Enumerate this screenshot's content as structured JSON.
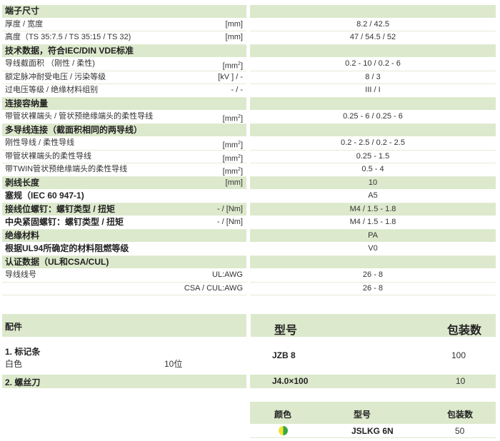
{
  "spec_rows": [
    {
      "label": "端子尺寸",
      "unit": "",
      "value": "",
      "style": "header"
    },
    {
      "label": "厚度 / 宽度",
      "unit": "[mm]",
      "value": "8.2 / 42.5",
      "style": "normal"
    },
    {
      "label": "高度（TS 35:7.5 / TS 35:15 / TS 32)",
      "unit": "[mm]",
      "value": "47 / 54.5 / 52",
      "style": "normal"
    },
    {
      "label": "技术数据，符合IEC/DIN VDE标准",
      "unit": "",
      "value": "",
      "style": "header"
    },
    {
      "label": "导线截面积 （刚性 / 柔性)",
      "unit": "[mm²]",
      "value": "0.2 - 10 / 0.2 - 6",
      "style": "normal"
    },
    {
      "label": "额定脉冲耐受电压 / 污染等级",
      "unit": "[kV ] / -",
      "value": "8 / 3",
      "style": "normal"
    },
    {
      "label": "过电压等级 / 绝缘材料组别",
      "unit": "- / -",
      "value": "III / I",
      "style": "normal"
    },
    {
      "label": "连接容纳量",
      "unit": "",
      "value": "",
      "style": "header"
    },
    {
      "label": "带管状裸端头 / 管状预绝缘端头的柔性导线",
      "unit": "[mm²]",
      "value": "0.25 - 6 / 0.25 - 6",
      "style": "normal"
    },
    {
      "label": "多导线连接（截面积相同的两导线）",
      "unit": "",
      "value": "",
      "style": "header"
    },
    {
      "label": "刚性导线 / 柔性导线",
      "unit": "[mm²]",
      "value": "0.2 - 2.5 / 0.2 - 2.5",
      "style": "normal"
    },
    {
      "label": "带管状裸端头的柔性导线",
      "unit": "[mm²]",
      "value": "0.25 - 1.5",
      "style": "normal"
    },
    {
      "label": "带TWIN管状预绝缘端头的柔性导线",
      "unit": "[mm²]",
      "value": "0.5 - 4",
      "style": "normal"
    },
    {
      "label": "剥线长度",
      "unit": "[mm]",
      "value": "10",
      "style": "header"
    },
    {
      "label": "塞规（IEC 60 947-1)",
      "unit": "",
      "value": "A5",
      "style": "bold"
    },
    {
      "label": "接线位螺钉：螺钉类型 / 扭矩",
      "unit": "- / [Nm]",
      "value": "M4 / 1.5 - 1.8",
      "style": "header"
    },
    {
      "label": "中央紧固螺钉：螺钉类型 / 扭矩",
      "unit": "- / [Nm]",
      "value": "M4 / 1.5 - 1.8",
      "style": "bold"
    },
    {
      "label": "绝缘材料",
      "unit": "",
      "value": "PA",
      "style": "header"
    },
    {
      "label": "根据UL94所确定的材料阻燃等级",
      "unit": "",
      "value": "V0",
      "style": "bold"
    },
    {
      "label": "认证数据（UL和CSA/CUL)",
      "unit": "",
      "value": "",
      "style": "header"
    },
    {
      "label": "导线线号",
      "unit": "UL:AWG",
      "value": "26 - 8",
      "style": "normal"
    },
    {
      "label": "",
      "unit": "CSA / CUL:AWG",
      "value": "26 - 8",
      "style": "normal"
    }
  ],
  "accessories": {
    "title": "配件",
    "col_model": "型号",
    "col_pack": "包装数",
    "item1": {
      "title": "1. 标记条",
      "sub": "白色",
      "sub_value": "10位",
      "model": "JZB 8",
      "pack": "100"
    },
    "item2": {
      "title": "2. 螺丝刀",
      "model": "J4.0×100",
      "pack": "10"
    }
  },
  "color_table": {
    "col_color": "颜色",
    "col_model": "型号",
    "col_pack": "包装数",
    "row": {
      "color": "yellow-green",
      "model": "JSLKG 6N",
      "pack": "50"
    }
  },
  "colors": {
    "green_band": "#dce9cc",
    "yellow": "#f2e233",
    "green": "#3aa645"
  }
}
